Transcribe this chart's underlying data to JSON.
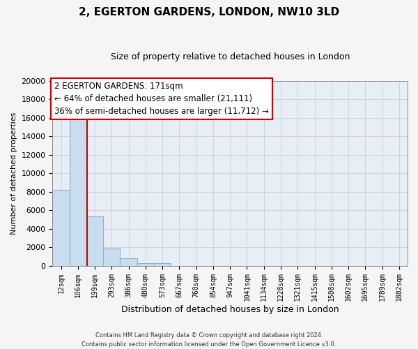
{
  "title": "2, EGERTON GARDENS, LONDON, NW10 3LD",
  "subtitle": "Size of property relative to detached houses in London",
  "xlabel": "Distribution of detached houses by size in London",
  "ylabel": "Number of detached properties",
  "bar_labels": [
    "12sqm",
    "106sqm",
    "199sqm",
    "293sqm",
    "386sqm",
    "480sqm",
    "573sqm",
    "667sqm",
    "760sqm",
    "854sqm",
    "947sqm",
    "1041sqm",
    "1134sqm",
    "1228sqm",
    "1321sqm",
    "1415sqm",
    "1508sqm",
    "1602sqm",
    "1695sqm",
    "1789sqm",
    "1882sqm"
  ],
  "bar_values": [
    8200,
    16550,
    5300,
    1850,
    800,
    300,
    300,
    0,
    0,
    0,
    0,
    0,
    0,
    0,
    0,
    0,
    0,
    0,
    0,
    0,
    0
  ],
  "bar_color": "#c8ddef",
  "bar_edge_color": "#8ab4cc",
  "vline_x": 1.55,
  "vline_color": "#cc0000",
  "ylim": [
    0,
    20000
  ],
  "yticks": [
    0,
    2000,
    4000,
    6000,
    8000,
    10000,
    12000,
    14000,
    16000,
    18000,
    20000
  ],
  "ann_line1": "2 EGERTON GARDENS: 171sqm",
  "ann_line2": "← 64% of detached houses are smaller (21,111)",
  "ann_line3": "36% of semi-detached houses are larger (11,712) →",
  "ann_box_fc": "#ffffff",
  "ann_box_ec": "#cc0000",
  "footer_line1": "Contains HM Land Registry data © Crown copyright and database right 2024.",
  "footer_line2": "Contains public sector information licensed under the Open Government Licence v3.0.",
  "fig_bg": "#f5f5f5",
  "plot_bg": "#e8eef5",
  "grid_color": "#c8d4de"
}
